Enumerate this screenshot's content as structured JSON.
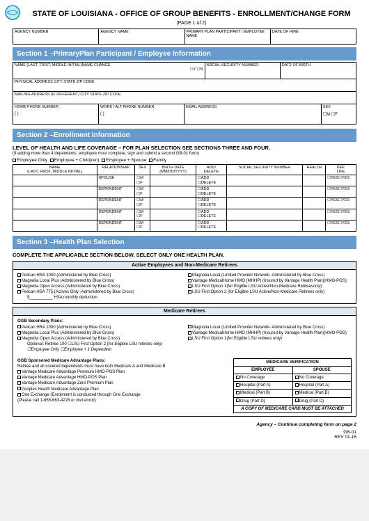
{
  "title": "STATE OF LOUISIANA - OFFICE OF GROUP BENEFITS - ENROLLMENT/CHANGE FORM",
  "pageNum": "(PAGE 1 of 2)",
  "logo": {
    "stroke": "#0099cc",
    "fill": "#cce8f5"
  },
  "headerCells": [
    "AGENCY NUMBER",
    "AGENCY NAME",
    "PRIMARY PLAN PARTICIPANT / EMPLOYEE NAME",
    "DATE OF HIRE"
  ],
  "section1": {
    "bar": "Section 1 –PrimaryPlan Participant / Employee Information",
    "row1": [
      {
        "label": "NAME (LAST, FIRST, MIDDLE INITIAL)NAME CHANGE",
        "w": "56%",
        "extra": "☐Y  ☐N"
      },
      {
        "label": "SOCIAL SECURITY NUMBER",
        "w": "22%"
      },
      {
        "label": "DATE OF BIRTH",
        "w": "22%"
      }
    ],
    "row2": [
      {
        "label": "PHYSICAL ADDRESS CITY STATE          ZIP CODE",
        "w": "100%"
      }
    ],
    "row3": [
      {
        "label": "MAILING ADDRESS (IF DIFFERENT) CITY STATE          ZIP CODE",
        "w": "100%"
      }
    ],
    "row4": [
      {
        "label": "HOME PHONE NUMBER",
        "w": "25%",
        "body": "( )"
      },
      {
        "label": "WORK / ALT PHONE NUMBER",
        "w": "25%",
        "body": "( )"
      },
      {
        "label": "EMAIL ADDRESS",
        "w": "40%"
      },
      {
        "label": "SEX",
        "w": "10%",
        "body": "☐M  ☐F"
      }
    ]
  },
  "section2": {
    "bar": "Section 2 –Enrollment Information",
    "levelHdr": "LEVEL OF HEALTH AND LIFE COVERAGE –  FOR PLAN SELECTION SEE SECTIONS THREE AND FOUR.",
    "note": "(If adding more than 4 dependents, employee must complete, sign and submit a second GB-01 form)",
    "checks": [
      "Employee Only",
      "Employee + Child(ren)",
      "Employee + Spouse",
      "Family"
    ],
    "cols": [
      "NAME\n(LAST, FIRST, MIDDLE INITIAL)",
      "RELATIONSHIP",
      "SEX",
      "BIRTH DATE\n(MM/DD/YYYY)",
      "ADD/\nDELETE",
      "SOCIAL SECURITY NUMBER",
      "HEALTH",
      "DEP.\nLIFE"
    ],
    "rows": [
      "SPOUSE",
      "DEPENDENT",
      "DEPENDENT",
      "DEPENDENT",
      "DEPENDENT"
    ],
    "sex": "☐M\n☐F",
    "addDel": "☐ADD\n☐DELETE",
    "yes": "☐YES☐YES"
  },
  "section3": {
    "bar": "Section 3 –Health Plan Selection",
    "hdr": "COMPLETE THE APPLICABLE SECTION BELOW.  SELECT ONLY ONE HEALTH PLAN.",
    "active": {
      "title": "Active Employees and Non-Medicare Retirees",
      "left": [
        "Pelican HRA 1000 (Administered by Blue Cross)",
        "Magnolia Local Plus (Administered by Blue Cross)",
        "Magnolia Open Access (Administered by Blue Cross)",
        "Pelican HSA 775 (Actives Only -Administered by Blue Cross)"
      ],
      "right": [
        "Magnolia Local (Limited Provider Network- Administered by Blue Cross)",
        "Vantage MedicalHome HMO (MHHP) (Insured by Vantage Health Plan)(HMO-POS)",
        "LSU First Option 1(for Eligible LSU Active/Non-Medicare Retireesonly)",
        "LSU First Option 2 (for Eligible LSU Active/Non-Medicare Retirees only)"
      ],
      "hsa": "$__________ HSA monthly deduction"
    },
    "medicare": {
      "title": "Medicare Retirees",
      "secHdr": "OGB Secondary Plans:",
      "left": [
        "Pelican HRA 1000 (Administered by Blue Cross)",
        "Magnolia Local Plus (Administered by Blue Cross)",
        "Magnolia Open Access (Administered by Blue Cross)"
      ],
      "right": [
        "Magnolia Local (Limited Provider Network- Administered by Blue Cross)",
        "Vantage MedicalHome HMO (MHHP) (Insured by Vantage Health Plan)(HMO-POS)",
        "LSU First Option 1(for Eligible LSU retirees only)"
      ],
      "opt": "Optional: Retiree 100     ☐LSU First Option 2 (for Eligible LSU retirees only)",
      "optChk": "☐Employee Only   ☐Employee + 1 Dependent",
      "advHdr": "OGB Sponsored Medicare Advantage Plans:",
      "advNote": "Retiree and all covered dependents must have both Medicare A and Medicare B",
      "advPlans": [
        "Vantage Medicare Advantage Premium HMO-POS Plan",
        "Vantage Medicare Advantage HMO-POS Plan",
        "Vantage Medicare Advantage Zero Premium Plan",
        "Peoples Health Medicare Advantage Plan",
        "One Exchange (Enrollment is conducted through One Exchange."
      ],
      "call": "(Please call 1-855-663-4228 or visit enroll)",
      "verification": {
        "title": "MEDICARE VERIFICATION",
        "cols": [
          "EMPLOYEE",
          "SPOUSE"
        ],
        "rows": [
          [
            "No Coverage",
            "No Coverage"
          ],
          [
            "Hospital (Part A)",
            "Hospital (Part A)"
          ],
          [
            "Medical (Part B)",
            "Medical (Part B)"
          ],
          [
            "Drug (Part D)",
            "Drug (Part D)"
          ]
        ],
        "note": "A COPY OF MEDICARE CARD MUST BE ATTACHED"
      }
    }
  },
  "footer": {
    "cont": "Agency – Continue completing form on page 2",
    "code": "GB-01",
    "rev": "REV 01-16"
  }
}
